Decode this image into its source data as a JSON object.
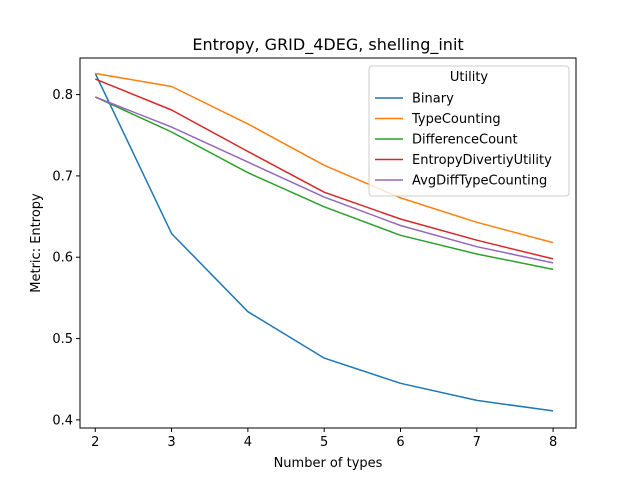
{
  "chart_data": {
    "type": "line",
    "title": "Entropy, GRID_4DEG, shelling_init",
    "xlabel": "Number of types",
    "ylabel": "Metric: Entropy",
    "x": [
      2,
      3,
      4,
      5,
      6,
      7,
      8
    ],
    "xlim": [
      1.8,
      8.3
    ],
    "ylim": [
      0.39,
      0.845
    ],
    "xticks": [
      "2",
      "3",
      "4",
      "5",
      "6",
      "7",
      "8"
    ],
    "yticks": [
      "0.4",
      "0.5",
      "0.6",
      "0.7",
      "0.8"
    ],
    "grid": false,
    "legend": {
      "title": "Utility",
      "placement": "top-right"
    },
    "series": [
      {
        "name": "Binary",
        "color": "#1f77b4",
        "values": [
          0.826,
          0.629,
          0.533,
          0.476,
          0.445,
          0.424,
          0.411
        ]
      },
      {
        "name": "TypeCounting",
        "color": "#ff7f0e",
        "values": [
          0.826,
          0.81,
          0.764,
          0.713,
          0.673,
          0.643,
          0.618
        ]
      },
      {
        "name": "DifferenceCount",
        "color": "#2ca02c",
        "values": [
          0.797,
          0.754,
          0.704,
          0.662,
          0.627,
          0.604,
          0.585
        ]
      },
      {
        "name": "EntropyDivertiyUtility",
        "color": "#d62728",
        "values": [
          0.819,
          0.781,
          0.73,
          0.68,
          0.647,
          0.621,
          0.598
        ]
      },
      {
        "name": "AvgDiffTypeCounting",
        "color": "#9467bd",
        "values": [
          0.797,
          0.76,
          0.717,
          0.674,
          0.639,
          0.613,
          0.593
        ]
      }
    ]
  }
}
